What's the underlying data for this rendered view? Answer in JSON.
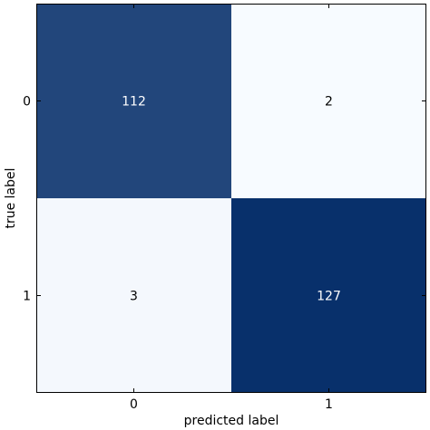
{
  "chart_data": {
    "type": "heatmap",
    "title": "",
    "xlabel": "predicted label",
    "ylabel": "true label",
    "x_categories": [
      "0",
      "1"
    ],
    "y_categories": [
      "0",
      "1"
    ],
    "matrix": [
      [
        112,
        2
      ],
      [
        3,
        127
      ]
    ],
    "colormap": [
      "#f7fbff",
      "#08306b"
    ],
    "value_range": [
      2,
      127
    ],
    "text_colors": {
      "light": "#ffffff",
      "dark": "#000000"
    },
    "grid": false,
    "colorbar": false
  }
}
